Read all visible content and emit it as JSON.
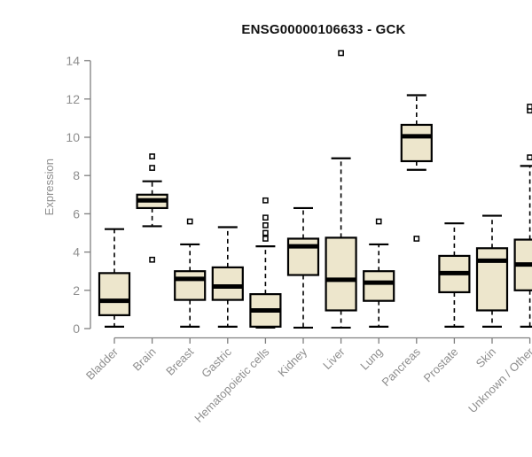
{
  "chart": {
    "title": "ENSG00000106633 - GCK",
    "ylabel": "Expression"
  },
  "chart_data": {
    "type": "boxplot",
    "title": "ENSG00000106633 - GCK",
    "ylabel": "Expression",
    "xlabel": "",
    "ylim": [
      0,
      14
    ],
    "yticks": [
      0,
      2,
      4,
      6,
      8,
      10,
      12,
      14
    ],
    "grid": false,
    "legend": "none",
    "categories": [
      "Bladder",
      "Brain",
      "Breast",
      "Gastric",
      "Hematopoietic cells",
      "Kidney",
      "Liver",
      "Lung",
      "Pancreas",
      "Prostate",
      "Skin",
      "Unknown / Other"
    ],
    "series": [
      {
        "name": "Bladder",
        "whisker_low": 0.1,
        "q1": 0.7,
        "median": 1.45,
        "q3": 2.9,
        "whisker_high": 5.2,
        "outliers": []
      },
      {
        "name": "Brain",
        "whisker_low": 5.35,
        "q1": 6.3,
        "median": 6.7,
        "q3": 7.0,
        "whisker_high": 7.7,
        "outliers": [
          3.6,
          8.4,
          9.0
        ]
      },
      {
        "name": "Breast",
        "whisker_low": 0.1,
        "q1": 1.5,
        "median": 2.6,
        "q3": 3.0,
        "whisker_high": 4.4,
        "outliers": [
          5.6
        ]
      },
      {
        "name": "Gastric",
        "whisker_low": 0.1,
        "q1": 1.5,
        "median": 2.2,
        "q3": 3.2,
        "whisker_high": 5.3,
        "outliers": []
      },
      {
        "name": "Hematopoietic cells",
        "whisker_low": 0.05,
        "q1": 0.1,
        "median": 0.95,
        "q3": 1.8,
        "whisker_high": 4.3,
        "outliers": [
          4.7,
          5.0,
          5.4,
          5.8,
          6.7
        ]
      },
      {
        "name": "Kidney",
        "whisker_low": 0.05,
        "q1": 2.8,
        "median": 4.3,
        "q3": 4.7,
        "whisker_high": 6.3,
        "outliers": []
      },
      {
        "name": "Liver",
        "whisker_low": 0.05,
        "q1": 0.95,
        "median": 2.55,
        "q3": 4.75,
        "whisker_high": 8.9,
        "outliers": [
          14.4
        ]
      },
      {
        "name": "Lung",
        "whisker_low": 0.1,
        "q1": 1.45,
        "median": 2.4,
        "q3": 3.0,
        "whisker_high": 4.4,
        "outliers": [
          5.6
        ]
      },
      {
        "name": "Pancreas",
        "whisker_low": 8.3,
        "q1": 8.75,
        "median": 10.05,
        "q3": 10.65,
        "whisker_high": 12.2,
        "outliers": [
          4.7
        ]
      },
      {
        "name": "Prostate",
        "whisker_low": 0.1,
        "q1": 1.9,
        "median": 2.9,
        "q3": 3.8,
        "whisker_high": 5.5,
        "outliers": []
      },
      {
        "name": "Skin",
        "whisker_low": 0.1,
        "q1": 0.95,
        "median": 3.55,
        "q3": 4.2,
        "whisker_high": 5.9,
        "outliers": []
      },
      {
        "name": "Unknown / Other",
        "whisker_low": 0.1,
        "q1": 2.0,
        "median": 3.35,
        "q3": 4.65,
        "whisker_high": 8.5,
        "outliers": [
          8.95,
          11.4,
          11.6
        ]
      }
    ],
    "colors": {
      "box_fill": "#EDE6CC",
      "box_stroke": "#000000",
      "median": "#000000",
      "whisker": "#000000",
      "outlier_stroke": "#000000",
      "outlier_fill": "#FFFFFF",
      "axis": "#7F7F7F",
      "tick_label": "#8E8E8E",
      "title": "#111111",
      "background": "#FFFFFF"
    }
  }
}
